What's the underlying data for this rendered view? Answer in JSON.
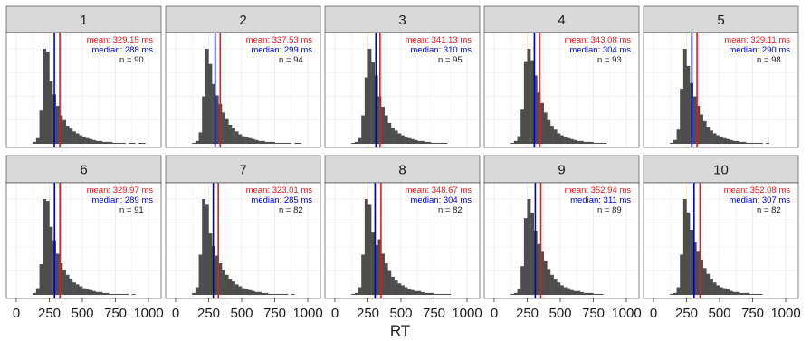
{
  "chart_data": {
    "type": "histogram-facets",
    "xlabel": "RT",
    "xlim": [
      0,
      1000
    ],
    "x_ticks": [
      "0",
      "250",
      "500",
      "750",
      "1000"
    ],
    "mean_label": "mean:",
    "median_label": "median:",
    "n_label": "n =",
    "unit": "ms",
    "colors": {
      "bars": "#4d4d4d",
      "mean": "#e41a1c",
      "median": "#0000cc",
      "strip": "#d9d9d9",
      "grid": "#ebebeb"
    },
    "bin_width": 25,
    "bin_start": 125,
    "panels": [
      {
        "label": "1",
        "mean": "329.15",
        "median": "288",
        "n": "90",
        "mean_val": 329.15,
        "median_val": 288,
        "counts": [
          2,
          6,
          35,
          100,
          97,
          66,
          52,
          40,
          30,
          25,
          19,
          16,
          13,
          11,
          9,
          7,
          6,
          5,
          4,
          3,
          3,
          2,
          2,
          2,
          1,
          1,
          1,
          1,
          0,
          1,
          1,
          0,
          1,
          1,
          0,
          0
        ]
      },
      {
        "label": "2",
        "mean": "337.53",
        "median": "299",
        "n": "94",
        "mean_val": 337.53,
        "median_val": 299,
        "counts": [
          1,
          3,
          12,
          50,
          100,
          84,
          63,
          51,
          42,
          33,
          26,
          20,
          17,
          13,
          10,
          8,
          7,
          6,
          5,
          4,
          3,
          3,
          2,
          2,
          2,
          1,
          1,
          1,
          1,
          1,
          0,
          1,
          1,
          0,
          0,
          0
        ]
      },
      {
        "label": "3",
        "mean": "341.13",
        "median": "310",
        "n": "95",
        "mean_val": 341.13,
        "median_val": 310,
        "counts": [
          1,
          2,
          6,
          30,
          70,
          100,
          86,
          72,
          50,
          39,
          30,
          22,
          17,
          14,
          11,
          9,
          7,
          6,
          5,
          4,
          3,
          3,
          2,
          2,
          1,
          1,
          1,
          1,
          1,
          0,
          0,
          0,
          0,
          0,
          0,
          0
        ]
      },
      {
        "label": "4",
        "mean": "343.08",
        "median": "304",
        "n": "93",
        "mean_val": 343.08,
        "median_val": 304,
        "counts": [
          1,
          3,
          8,
          36,
          87,
          100,
          88,
          72,
          54,
          43,
          33,
          25,
          19,
          15,
          11,
          9,
          7,
          6,
          5,
          4,
          3,
          3,
          2,
          2,
          2,
          1,
          1,
          1,
          1,
          0,
          0,
          0,
          0,
          0,
          0,
          0
        ]
      },
      {
        "label": "5",
        "mean": "329.11",
        "median": "290",
        "n": "98",
        "mean_val": 329.11,
        "median_val": 290,
        "counts": [
          1,
          4,
          15,
          58,
          100,
          82,
          64,
          50,
          40,
          31,
          24,
          18,
          14,
          11,
          9,
          7,
          6,
          5,
          4,
          3,
          3,
          2,
          2,
          1,
          1,
          1,
          1,
          1,
          0,
          1,
          0,
          0,
          0,
          0,
          0,
          0
        ]
      },
      {
        "label": "6",
        "mean": "329.97",
        "median": "289",
        "n": "91",
        "mean_val": 329.97,
        "median_val": 289,
        "counts": [
          2,
          7,
          32,
          100,
          98,
          71,
          57,
          43,
          33,
          26,
          21,
          16,
          13,
          11,
          9,
          7,
          6,
          5,
          4,
          3,
          3,
          2,
          2,
          1,
          1,
          1,
          1,
          1,
          1,
          0,
          1,
          0,
          0,
          0,
          0,
          0
        ]
      },
      {
        "label": "7",
        "mean": "323.01",
        "median": "285",
        "n": "82",
        "mean_val": 323.01,
        "median_val": 285,
        "counts": [
          2,
          8,
          42,
          100,
          94,
          64,
          51,
          41,
          33,
          26,
          21,
          17,
          14,
          11,
          9,
          7,
          6,
          5,
          4,
          3,
          3,
          2,
          2,
          1,
          1,
          1,
          1,
          1,
          1,
          0,
          1,
          0,
          0,
          0,
          0,
          0
        ]
      },
      {
        "label": "8",
        "mean": "348.67",
        "median": "304",
        "n": "82",
        "mean_val": 348.67,
        "median_val": 304,
        "counts": [
          1,
          2,
          8,
          42,
          100,
          94,
          65,
          52,
          58,
          43,
          33,
          25,
          19,
          15,
          12,
          10,
          8,
          6,
          5,
          4,
          4,
          3,
          2,
          2,
          2,
          1,
          1,
          1,
          1,
          1,
          0,
          0,
          0,
          0,
          0,
          0
        ]
      },
      {
        "label": "9",
        "mean": "352.94",
        "median": "311",
        "n": "89",
        "mean_val": 352.94,
        "median_val": 311,
        "counts": [
          1,
          2,
          6,
          30,
          80,
          100,
          85,
          67,
          53,
          45,
          35,
          27,
          21,
          16,
          13,
          10,
          8,
          7,
          5,
          4,
          4,
          3,
          2,
          2,
          2,
          1,
          1,
          1,
          0,
          0,
          0,
          0,
          0,
          0,
          0,
          0
        ]
      },
      {
        "label": "10",
        "mean": "352.08",
        "median": "307",
        "n": "82",
        "mean_val": 352.08,
        "median_val": 307,
        "counts": [
          1,
          2,
          8,
          42,
          100,
          86,
          68,
          55,
          45,
          36,
          28,
          22,
          17,
          13,
          10,
          8,
          7,
          6,
          4,
          3,
          3,
          2,
          2,
          2,
          1,
          1,
          1,
          1,
          0,
          0,
          0,
          0,
          0,
          0,
          0,
          0
        ]
      }
    ]
  }
}
